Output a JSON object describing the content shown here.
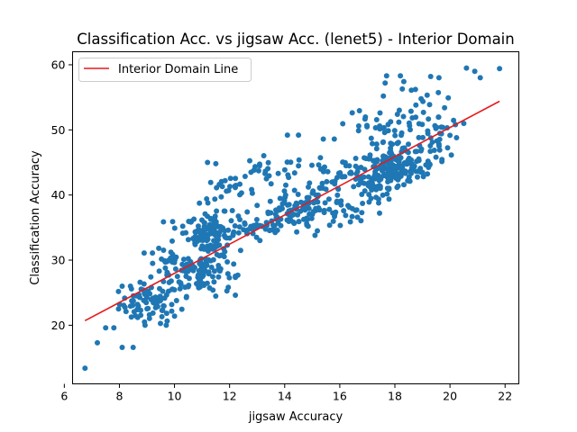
{
  "chart_data": {
    "type": "scatter",
    "title": "Classification Acc. vs jigsaw Acc. (lenet5) - Interior Domain",
    "xlabel": "jigsaw Accuracy",
    "ylabel": "Classification Accuracy",
    "xlim": [
      6.3,
      22.5
    ],
    "ylim": [
      11,
      62
    ],
    "xticks": [
      "6",
      "8",
      "10",
      "12",
      "14",
      "16",
      "18",
      "20",
      "22"
    ],
    "yticks": [
      "20",
      "30",
      "40",
      "50",
      "60"
    ],
    "grid": false,
    "legend": {
      "position": "top-left",
      "entries": [
        "Interior Domain Line"
      ]
    },
    "point_color": "#1f77b4",
    "line_color": "#e41a1c",
    "fit_line": {
      "name": "Interior Domain Line",
      "x": [
        6.75,
        21.8
      ],
      "y": [
        20.7,
        54.4
      ]
    },
    "clusters": [
      {
        "x_center": 9.1,
        "y_center": 23.3,
        "x_spread": 0.55,
        "y_spread": 1.5,
        "count": 80
      },
      {
        "x_center": 9.9,
        "y_center": 29.2,
        "x_spread": 0.4,
        "y_spread": 1.2,
        "count": 30
      },
      {
        "x_center": 10.7,
        "y_center": 34.6,
        "x_spread": 0.5,
        "y_spread": 1.2,
        "count": 30
      },
      {
        "x_center": 11.0,
        "y_center": 28.0,
        "x_spread": 0.55,
        "y_spread": 1.7,
        "count": 90
      },
      {
        "x_center": 11.4,
        "y_center": 33.8,
        "x_spread": 0.45,
        "y_spread": 1.7,
        "count": 80
      },
      {
        "x_center": 11.9,
        "y_center": 40.6,
        "x_spread": 0.5,
        "y_spread": 1.0,
        "count": 25
      },
      {
        "x_center": 12.9,
        "y_center": 35.2,
        "x_spread": 0.6,
        "y_spread": 1.0,
        "count": 35
      },
      {
        "x_center": 13.4,
        "y_center": 43.5,
        "x_spread": 0.7,
        "y_spread": 1.2,
        "count": 25
      },
      {
        "x_center": 14.3,
        "y_center": 36.8,
        "x_spread": 0.6,
        "y_spread": 1.5,
        "count": 70
      },
      {
        "x_center": 15.2,
        "y_center": 39.4,
        "x_spread": 0.55,
        "y_spread": 1.2,
        "count": 40
      },
      {
        "x_center": 15.9,
        "y_center": 43.3,
        "x_spread": 0.7,
        "y_spread": 1.1,
        "count": 35
      },
      {
        "x_center": 16.1,
        "y_center": 37.2,
        "x_spread": 0.4,
        "y_spread": 1.1,
        "count": 20
      },
      {
        "x_center": 17.2,
        "y_center": 40.5,
        "x_spread": 0.4,
        "y_spread": 1.5,
        "count": 30
      },
      {
        "x_center": 17.9,
        "y_center": 44.1,
        "x_spread": 0.6,
        "y_spread": 1.4,
        "count": 170
      },
      {
        "x_center": 17.2,
        "y_center": 50.5,
        "x_spread": 0.6,
        "y_spread": 1.4,
        "count": 30
      },
      {
        "x_center": 18.7,
        "y_center": 47.2,
        "x_spread": 0.7,
        "y_spread": 1.6,
        "count": 50
      },
      {
        "x_center": 19.3,
        "y_center": 50.6,
        "x_spread": 0.6,
        "y_spread": 1.3,
        "count": 20
      },
      {
        "x_center": 18.9,
        "y_center": 55.0,
        "x_spread": 0.6,
        "y_spread": 1.5,
        "count": 14
      }
    ],
    "extra_points": [
      {
        "x": 6.75,
        "y": 13.4
      },
      {
        "x": 7.2,
        "y": 17.3
      },
      {
        "x": 7.5,
        "y": 19.6
      },
      {
        "x": 7.8,
        "y": 19.6
      },
      {
        "x": 8.1,
        "y": 16.6
      },
      {
        "x": 8.5,
        "y": 16.6
      },
      {
        "x": 8.1,
        "y": 26.0
      },
      {
        "x": 8.4,
        "y": 26.0
      },
      {
        "x": 8.9,
        "y": 31.1
      },
      {
        "x": 9.2,
        "y": 31.1
      },
      {
        "x": 11.2,
        "y": 45.0
      },
      {
        "x": 11.5,
        "y": 44.8
      },
      {
        "x": 14.1,
        "y": 49.2
      },
      {
        "x": 14.5,
        "y": 49.2
      },
      {
        "x": 15.4,
        "y": 48.6
      },
      {
        "x": 15.8,
        "y": 48.6
      },
      {
        "x": 17.7,
        "y": 58.3
      },
      {
        "x": 18.2,
        "y": 58.3
      },
      {
        "x": 18.6,
        "y": 56.1
      },
      {
        "x": 19.6,
        "y": 58.0
      },
      {
        "x": 19.3,
        "y": 58.2
      },
      {
        "x": 20.6,
        "y": 59.5
      },
      {
        "x": 20.9,
        "y": 59.0
      },
      {
        "x": 21.1,
        "y": 58.0
      },
      {
        "x": 21.8,
        "y": 59.4
      },
      {
        "x": 20.2,
        "y": 50.8
      },
      {
        "x": 20.5,
        "y": 51.0
      },
      {
        "x": 16.4,
        "y": 43.5
      },
      {
        "x": 13.1,
        "y": 33.0
      },
      {
        "x": 12.3,
        "y": 27.7
      },
      {
        "x": 12.4,
        "y": 31.5
      },
      {
        "x": 15.1,
        "y": 33.8
      },
      {
        "x": 16.8,
        "y": 37.3
      },
      {
        "x": 16.8,
        "y": 40.1
      },
      {
        "x": 19.2,
        "y": 44.5
      },
      {
        "x": 19.6,
        "y": 47.8
      },
      {
        "x": 10.0,
        "y": 21.4
      },
      {
        "x": 9.7,
        "y": 20.0
      },
      {
        "x": 10.3,
        "y": 35.2
      },
      {
        "x": 10.2,
        "y": 25.6
      },
      {
        "x": 12.1,
        "y": 37.6
      },
      {
        "x": 9.6,
        "y": 26.7
      },
      {
        "x": 13.8,
        "y": 38.0
      },
      {
        "x": 14.8,
        "y": 35.6
      }
    ]
  }
}
